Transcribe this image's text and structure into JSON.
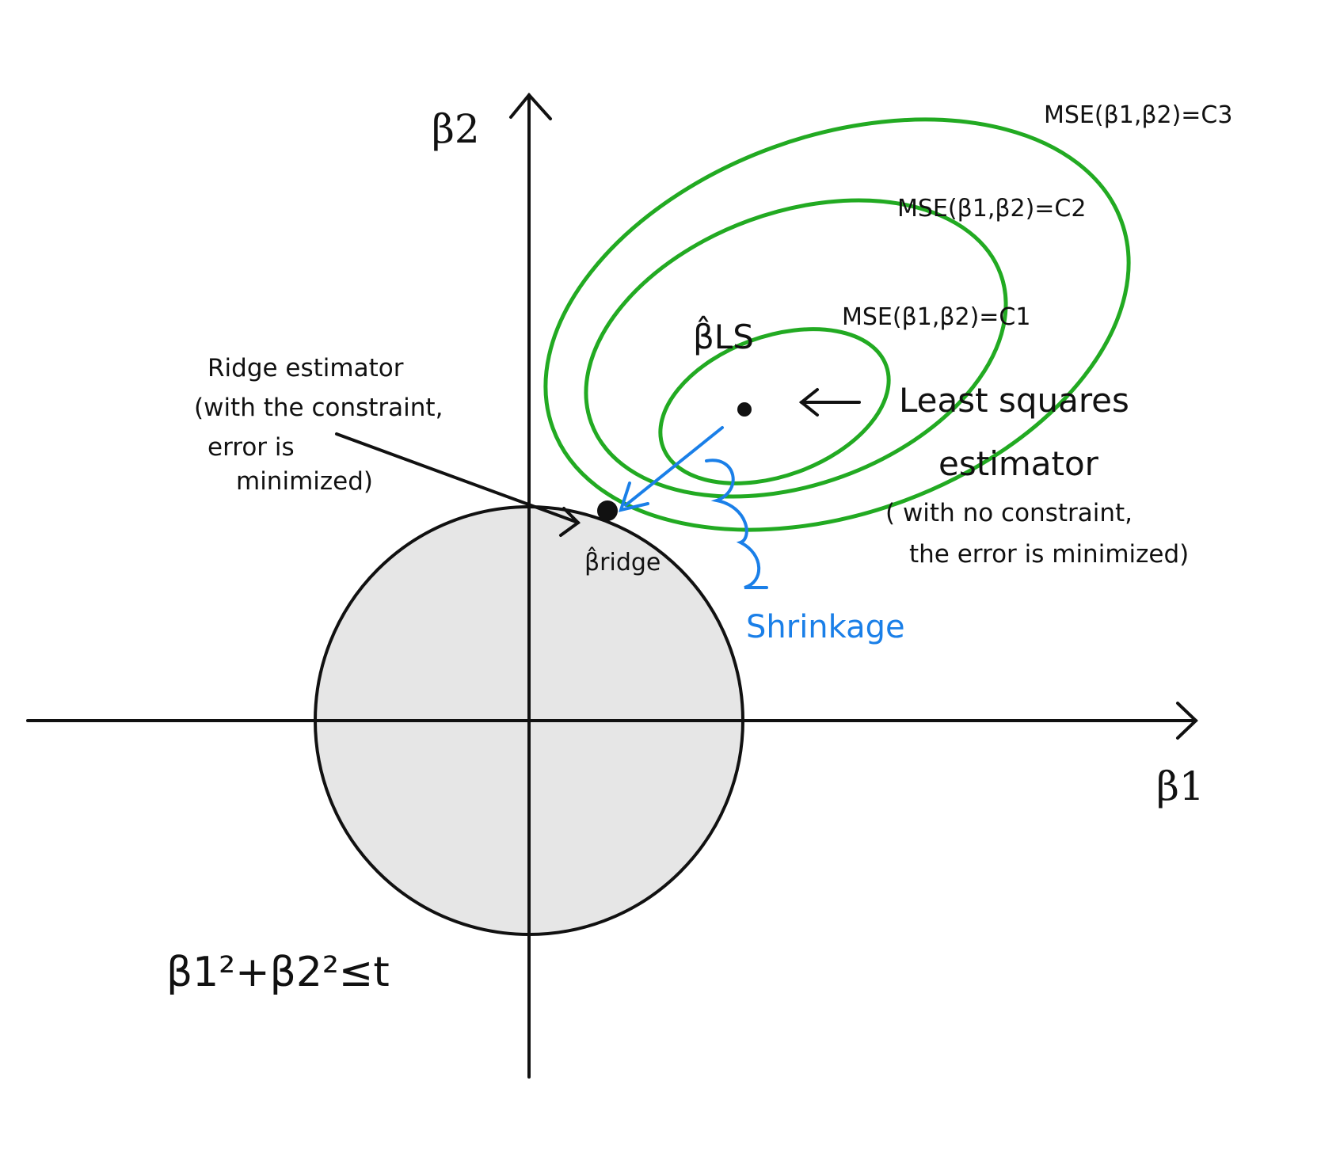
{
  "axes": {
    "x_label": "β1",
    "y_label": "β2"
  },
  "contours": [
    {
      "label": "MSE(β1,β2)=C1"
    },
    {
      "label": "MSE(β1,β2)=C2"
    },
    {
      "label": "MSE(β1,β2)=C3"
    }
  ],
  "least_squares": {
    "symbol": "β̂LS",
    "label_line1": "Least squares",
    "label_line2": "estimator",
    "note_line1": "( with no constraint,",
    "note_line2": "the error is minimized)"
  },
  "ridge": {
    "symbol": "β̂ridge",
    "label_line1": "Ridge estimator",
    "label_line2": "(with the constraint,",
    "label_line3": "error is",
    "label_line4": "minimized)"
  },
  "shrinkage_label": "Shrinkage",
  "constraint": "β1²+β2²≤t",
  "colors": {
    "contour": "#22aa22",
    "shrinkage": "#1a7fe8",
    "constraint_fill": "#e6e6e6",
    "ink": "#111111"
  }
}
